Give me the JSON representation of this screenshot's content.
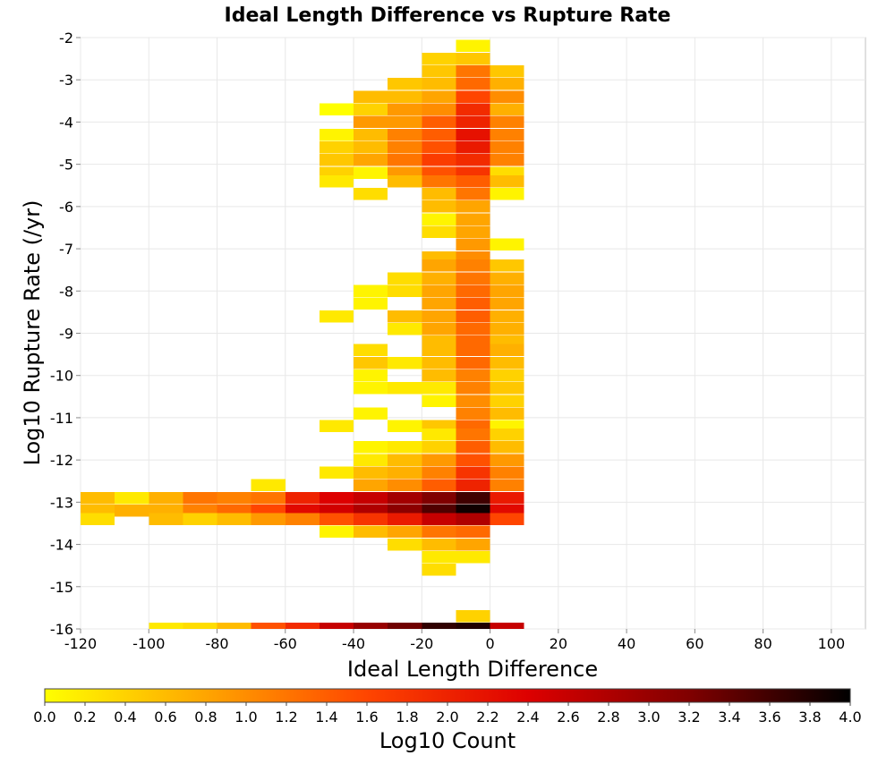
{
  "chart_data": {
    "type": "heatmap",
    "title": "Ideal Length Difference vs Rupture Rate",
    "xlabel": "Ideal Length Difference",
    "ylabel": "Log10 Rupture Rate (/yr)",
    "colorbar_label": "Log10 Count",
    "xlim": [
      -120,
      110
    ],
    "ylim": [
      -16,
      -2
    ],
    "x_ticks": [
      "-120",
      "-100",
      "-80",
      "-60",
      "-40",
      "-20",
      "0",
      "20",
      "40",
      "60",
      "80",
      "100"
    ],
    "y_ticks": [
      "-2",
      "-3",
      "-4",
      "-5",
      "-6",
      "-7",
      "-8",
      "-9",
      "-10",
      "-11",
      "-12",
      "-13",
      "-14",
      "-15",
      "-16"
    ],
    "colorbar_ticks": [
      "0.0",
      "0.2",
      "0.4",
      "0.6",
      "0.8",
      "1.0",
      "1.2",
      "1.4",
      "1.6",
      "1.8",
      "2.0",
      "2.2",
      "2.4",
      "2.6",
      "2.8",
      "3.0",
      "3.2",
      "3.4",
      "3.6",
      "3.8",
      "4.0"
    ],
    "color_scale": {
      "min": 0,
      "max": 4,
      "stops": [
        "#ffff00",
        "#ffa500",
        "#ff4500",
        "#dd0000",
        "#800000",
        "#000000"
      ]
    },
    "grid": true,
    "legend": "bottom",
    "bin_width_x": 10,
    "bin_height_y": 0.286,
    "cells": [
      {
        "x": -5,
        "y": -2.2,
        "v": 0.1
      },
      {
        "x": -5,
        "y": -2.5,
        "v": 0.5
      },
      {
        "x": -15,
        "y": -2.5,
        "v": 0.4
      },
      {
        "x": -5,
        "y": -2.8,
        "v": 1.2
      },
      {
        "x": -15,
        "y": -2.8,
        "v": 0.5
      },
      {
        "x": 5,
        "y": -2.8,
        "v": 0.5
      },
      {
        "x": -5,
        "y": -3.1,
        "v": 1.3
      },
      {
        "x": -15,
        "y": -3.1,
        "v": 0.6
      },
      {
        "x": -25,
        "y": -3.1,
        "v": 0.5
      },
      {
        "x": 5,
        "y": -3.1,
        "v": 0.7
      },
      {
        "x": -5,
        "y": -3.4,
        "v": 1.6
      },
      {
        "x": -15,
        "y": -3.4,
        "v": 0.8
      },
      {
        "x": -25,
        "y": -3.4,
        "v": 0.6
      },
      {
        "x": -35,
        "y": -3.4,
        "v": 0.6
      },
      {
        "x": 5,
        "y": -3.4,
        "v": 1.0
      },
      {
        "x": -5,
        "y": -3.7,
        "v": 1.9
      },
      {
        "x": -15,
        "y": -3.7,
        "v": 1.0
      },
      {
        "x": -25,
        "y": -3.7,
        "v": 0.9
      },
      {
        "x": -35,
        "y": -3.7,
        "v": 0.4
      },
      {
        "x": -45,
        "y": -3.7,
        "v": 0.0
      },
      {
        "x": 5,
        "y": -3.7,
        "v": 0.7
      },
      {
        "x": -5,
        "y": -4.0,
        "v": 2.0
      },
      {
        "x": -15,
        "y": -4.0,
        "v": 1.4
      },
      {
        "x": -25,
        "y": -4.0,
        "v": 0.9
      },
      {
        "x": -35,
        "y": -4.0,
        "v": 0.9
      },
      {
        "x": 5,
        "y": -4.0,
        "v": 1.1
      },
      {
        "x": -5,
        "y": -4.3,
        "v": 2.2
      },
      {
        "x": -15,
        "y": -4.3,
        "v": 1.4
      },
      {
        "x": -25,
        "y": -4.3,
        "v": 1.1
      },
      {
        "x": -35,
        "y": -4.3,
        "v": 0.6
      },
      {
        "x": -45,
        "y": -4.3,
        "v": 0.1
      },
      {
        "x": 5,
        "y": -4.3,
        "v": 1.1
      },
      {
        "x": -5,
        "y": -4.6,
        "v": 2.1
      },
      {
        "x": -15,
        "y": -4.6,
        "v": 1.5
      },
      {
        "x": -25,
        "y": -4.6,
        "v": 1.1
      },
      {
        "x": -35,
        "y": -4.6,
        "v": 0.6
      },
      {
        "x": -45,
        "y": -4.6,
        "v": 0.4
      },
      {
        "x": 5,
        "y": -4.6,
        "v": 1.1
      },
      {
        "x": -5,
        "y": -4.9,
        "v": 1.9
      },
      {
        "x": -15,
        "y": -4.9,
        "v": 1.7
      },
      {
        "x": -25,
        "y": -4.9,
        "v": 1.2
      },
      {
        "x": -35,
        "y": -4.9,
        "v": 0.8
      },
      {
        "x": -45,
        "y": -4.9,
        "v": 0.5
      },
      {
        "x": 5,
        "y": -4.9,
        "v": 1.1
      },
      {
        "x": -5,
        "y": -5.2,
        "v": 1.8
      },
      {
        "x": -15,
        "y": -5.2,
        "v": 1.5
      },
      {
        "x": -25,
        "y": -5.2,
        "v": 0.9
      },
      {
        "x": -35,
        "y": -5.2,
        "v": 0.1
      },
      {
        "x": -45,
        "y": -5.2,
        "v": 0.4
      },
      {
        "x": 5,
        "y": -5.2,
        "v": 0.3
      },
      {
        "x": -5,
        "y": -5.4,
        "v": 1.4
      },
      {
        "x": -15,
        "y": -5.4,
        "v": 1.2
      },
      {
        "x": -25,
        "y": -5.4,
        "v": 0.6
      },
      {
        "x": -45,
        "y": -5.4,
        "v": 0.2
      },
      {
        "x": 5,
        "y": -5.4,
        "v": 0.6
      },
      {
        "x": -5,
        "y": -5.7,
        "v": 1.2
      },
      {
        "x": -15,
        "y": -5.7,
        "v": 0.6
      },
      {
        "x": -35,
        "y": -5.7,
        "v": 0.3
      },
      {
        "x": 5,
        "y": -5.7,
        "v": 0.1
      },
      {
        "x": -5,
        "y": -6.0,
        "v": 0.8
      },
      {
        "x": -15,
        "y": -6.0,
        "v": 0.6
      },
      {
        "x": -5,
        "y": -6.3,
        "v": 0.8
      },
      {
        "x": -15,
        "y": -6.3,
        "v": 0.1
      },
      {
        "x": -5,
        "y": -6.6,
        "v": 0.8
      },
      {
        "x": -15,
        "y": -6.6,
        "v": 0.3
      },
      {
        "x": -5,
        "y": -6.9,
        "v": 0.9
      },
      {
        "x": 5,
        "y": -6.9,
        "v": 0.1
      },
      {
        "x": -5,
        "y": -7.2,
        "v": 1.0
      },
      {
        "x": -15,
        "y": -7.2,
        "v": 0.6
      },
      {
        "x": -5,
        "y": -7.4,
        "v": 1.1
      },
      {
        "x": -15,
        "y": -7.4,
        "v": 0.8
      },
      {
        "x": 5,
        "y": -7.4,
        "v": 0.5
      },
      {
        "x": -5,
        "y": -7.7,
        "v": 1.2
      },
      {
        "x": -15,
        "y": -7.7,
        "v": 0.7
      },
      {
        "x": -25,
        "y": -7.7,
        "v": 0.3
      },
      {
        "x": 5,
        "y": -7.7,
        "v": 0.7
      },
      {
        "x": -5,
        "y": -8.0,
        "v": 1.3
      },
      {
        "x": -15,
        "y": -8.0,
        "v": 0.8
      },
      {
        "x": -25,
        "y": -8.0,
        "v": 0.3
      },
      {
        "x": -35,
        "y": -8.0,
        "v": 0.1
      },
      {
        "x": 5,
        "y": -8.0,
        "v": 0.8
      },
      {
        "x": -5,
        "y": -8.3,
        "v": 1.4
      },
      {
        "x": -15,
        "y": -8.3,
        "v": 0.8
      },
      {
        "x": -35,
        "y": -8.3,
        "v": 0.1
      },
      {
        "x": 5,
        "y": -8.3,
        "v": 0.8
      },
      {
        "x": -5,
        "y": -8.6,
        "v": 1.4
      },
      {
        "x": -15,
        "y": -8.6,
        "v": 0.8
      },
      {
        "x": -25,
        "y": -8.6,
        "v": 0.6
      },
      {
        "x": -45,
        "y": -8.6,
        "v": 0.2
      },
      {
        "x": 5,
        "y": -8.6,
        "v": 0.7
      },
      {
        "x": -5,
        "y": -8.9,
        "v": 1.3
      },
      {
        "x": -15,
        "y": -8.9,
        "v": 0.8
      },
      {
        "x": -25,
        "y": -8.9,
        "v": 0.2
      },
      {
        "x": 5,
        "y": -8.9,
        "v": 0.7
      },
      {
        "x": -5,
        "y": -9.2,
        "v": 1.3
      },
      {
        "x": -15,
        "y": -9.2,
        "v": 0.6
      },
      {
        "x": 5,
        "y": -9.2,
        "v": 0.6
      },
      {
        "x": -5,
        "y": -9.4,
        "v": 1.3
      },
      {
        "x": -15,
        "y": -9.4,
        "v": 0.6
      },
      {
        "x": -35,
        "y": -9.4,
        "v": 0.3
      },
      {
        "x": 5,
        "y": -9.4,
        "v": 0.7
      },
      {
        "x": -5,
        "y": -9.7,
        "v": 1.3
      },
      {
        "x": -15,
        "y": -9.7,
        "v": 0.6
      },
      {
        "x": -25,
        "y": -9.7,
        "v": 0.2
      },
      {
        "x": -35,
        "y": -9.7,
        "v": 0.5
      },
      {
        "x": 5,
        "y": -9.7,
        "v": 0.6
      },
      {
        "x": -5,
        "y": -10.0,
        "v": 1.1
      },
      {
        "x": -15,
        "y": -10.0,
        "v": 0.6
      },
      {
        "x": -35,
        "y": -10.0,
        "v": 0.1
      },
      {
        "x": 5,
        "y": -10.0,
        "v": 0.4
      },
      {
        "x": -5,
        "y": -10.3,
        "v": 1.1
      },
      {
        "x": -15,
        "y": -10.3,
        "v": 0.2
      },
      {
        "x": -25,
        "y": -10.3,
        "v": 0.2
      },
      {
        "x": -35,
        "y": -10.3,
        "v": 0.1
      },
      {
        "x": 5,
        "y": -10.3,
        "v": 0.5
      },
      {
        "x": -5,
        "y": -10.6,
        "v": 1.0
      },
      {
        "x": -15,
        "y": -10.6,
        "v": 0.1
      },
      {
        "x": 5,
        "y": -10.6,
        "v": 0.4
      },
      {
        "x": -5,
        "y": -10.9,
        "v": 1.1
      },
      {
        "x": -35,
        "y": -10.9,
        "v": 0.1
      },
      {
        "x": 5,
        "y": -10.9,
        "v": 0.6
      },
      {
        "x": -5,
        "y": -11.2,
        "v": 1.3
      },
      {
        "x": -15,
        "y": -11.2,
        "v": 0.5
      },
      {
        "x": -25,
        "y": -11.2,
        "v": 0.1
      },
      {
        "x": -45,
        "y": -11.2,
        "v": 0.2
      },
      {
        "x": 5,
        "y": -11.2,
        "v": 0.1
      },
      {
        "x": -5,
        "y": -11.4,
        "v": 1.2
      },
      {
        "x": -15,
        "y": -11.4,
        "v": 0.2
      },
      {
        "x": 5,
        "y": -11.4,
        "v": 0.4
      },
      {
        "x": -5,
        "y": -11.7,
        "v": 1.4
      },
      {
        "x": -15,
        "y": -11.7,
        "v": 0.4
      },
      {
        "x": -25,
        "y": -11.7,
        "v": 0.2
      },
      {
        "x": -35,
        "y": -11.7,
        "v": 0.1
      },
      {
        "x": 5,
        "y": -11.7,
        "v": 0.6
      },
      {
        "x": -5,
        "y": -12.0,
        "v": 1.5
      },
      {
        "x": -15,
        "y": -12.0,
        "v": 0.9
      },
      {
        "x": -25,
        "y": -12.0,
        "v": 0.6
      },
      {
        "x": -35,
        "y": -12.0,
        "v": 0.2
      },
      {
        "x": 5,
        "y": -12.0,
        "v": 0.9
      },
      {
        "x": -5,
        "y": -12.3,
        "v": 1.8
      },
      {
        "x": -15,
        "y": -12.3,
        "v": 1.1
      },
      {
        "x": -25,
        "y": -12.3,
        "v": 0.7
      },
      {
        "x": -35,
        "y": -12.3,
        "v": 0.6
      },
      {
        "x": -45,
        "y": -12.3,
        "v": 0.2
      },
      {
        "x": 5,
        "y": -12.3,
        "v": 1.1
      },
      {
        "x": -5,
        "y": -12.6,
        "v": 2.0
      },
      {
        "x": -15,
        "y": -12.6,
        "v": 1.4
      },
      {
        "x": -25,
        "y": -12.6,
        "v": 1.0
      },
      {
        "x": -35,
        "y": -12.6,
        "v": 0.8
      },
      {
        "x": -65,
        "y": -12.6,
        "v": 0.2
      },
      {
        "x": 5,
        "y": -12.6,
        "v": 1.1
      },
      {
        "x": -5,
        "y": -12.9,
        "v": 3.6
      },
      {
        "x": -15,
        "y": -12.9,
        "v": 3.2
      },
      {
        "x": -25,
        "y": -12.9,
        "v": 2.9
      },
      {
        "x": -35,
        "y": -12.9,
        "v": 2.6
      },
      {
        "x": -45,
        "y": -12.9,
        "v": 2.4
      },
      {
        "x": -55,
        "y": -12.9,
        "v": 2.0
      },
      {
        "x": -65,
        "y": -12.9,
        "v": 1.2
      },
      {
        "x": -75,
        "y": -12.9,
        "v": 1.1
      },
      {
        "x": -85,
        "y": -12.9,
        "v": 1.2
      },
      {
        "x": -95,
        "y": -12.9,
        "v": 0.7
      },
      {
        "x": -105,
        "y": -12.9,
        "v": 0.2
      },
      {
        "x": -115,
        "y": -12.9,
        "v": 0.6
      },
      {
        "x": 5,
        "y": -12.9,
        "v": 2.1
      },
      {
        "x": -5,
        "y": -13.2,
        "v": 3.9
      },
      {
        "x": -15,
        "y": -13.2,
        "v": 3.5
      },
      {
        "x": -25,
        "y": -13.2,
        "v": 3.1
      },
      {
        "x": -35,
        "y": -13.2,
        "v": 2.8
      },
      {
        "x": -45,
        "y": -13.2,
        "v": 2.5
      },
      {
        "x": -55,
        "y": -13.2,
        "v": 2.3
      },
      {
        "x": -65,
        "y": -13.2,
        "v": 1.6
      },
      {
        "x": -75,
        "y": -13.2,
        "v": 1.3
      },
      {
        "x": -85,
        "y": -13.2,
        "v": 1.1
      },
      {
        "x": -95,
        "y": -13.2,
        "v": 0.7
      },
      {
        "x": -105,
        "y": -13.2,
        "v": 0.7
      },
      {
        "x": -115,
        "y": -13.2,
        "v": 0.6
      },
      {
        "x": 5,
        "y": -13.2,
        "v": 2.3
      },
      {
        "x": -5,
        "y": -13.4,
        "v": 2.8
      },
      {
        "x": -15,
        "y": -13.4,
        "v": 2.6
      },
      {
        "x": -25,
        "y": -13.4,
        "v": 2.1
      },
      {
        "x": -35,
        "y": -13.4,
        "v": 1.8
      },
      {
        "x": -45,
        "y": -13.4,
        "v": 1.5
      },
      {
        "x": -55,
        "y": -13.4,
        "v": 1.1
      },
      {
        "x": -65,
        "y": -13.4,
        "v": 0.9
      },
      {
        "x": -75,
        "y": -13.4,
        "v": 0.6
      },
      {
        "x": -85,
        "y": -13.4,
        "v": 0.4
      },
      {
        "x": -95,
        "y": -13.4,
        "v": 0.6
      },
      {
        "x": -115,
        "y": -13.4,
        "v": 0.3
      },
      {
        "x": 5,
        "y": -13.4,
        "v": 1.6
      },
      {
        "x": -5,
        "y": -13.7,
        "v": 1.3
      },
      {
        "x": -15,
        "y": -13.7,
        "v": 1.2
      },
      {
        "x": -25,
        "y": -13.7,
        "v": 0.8
      },
      {
        "x": -35,
        "y": -13.7,
        "v": 0.6
      },
      {
        "x": -45,
        "y": -13.7,
        "v": 0.1
      },
      {
        "x": -5,
        "y": -14.0,
        "v": 0.8
      },
      {
        "x": -15,
        "y": -14.0,
        "v": 0.6
      },
      {
        "x": -25,
        "y": -14.0,
        "v": 0.3
      },
      {
        "x": -5,
        "y": -14.3,
        "v": 0.2
      },
      {
        "x": -15,
        "y": -14.3,
        "v": 0.2
      },
      {
        "x": -15,
        "y": -14.6,
        "v": 0.3
      },
      {
        "x": -5,
        "y": -15.7,
        "v": 0.4
      },
      {
        "x": -5,
        "y": -16.0,
        "v": 3.8
      },
      {
        "x": -15,
        "y": -16.0,
        "v": 3.7
      },
      {
        "x": -25,
        "y": -16.0,
        "v": 3.3
      },
      {
        "x": -35,
        "y": -16.0,
        "v": 3.0
      },
      {
        "x": -45,
        "y": -16.0,
        "v": 2.6
      },
      {
        "x": -55,
        "y": -16.0,
        "v": 1.9
      },
      {
        "x": -65,
        "y": -16.0,
        "v": 1.5
      },
      {
        "x": -75,
        "y": -16.0,
        "v": 0.6
      },
      {
        "x": -85,
        "y": -16.0,
        "v": 0.3
      },
      {
        "x": -95,
        "y": -16.0,
        "v": 0.2
      },
      {
        "x": 5,
        "y": -16.0,
        "v": 2.6
      }
    ]
  }
}
